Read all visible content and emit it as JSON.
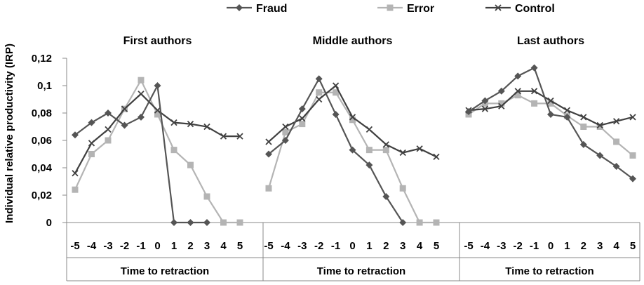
{
  "chart_data": {
    "type": "line",
    "ylabel": "Individual relative productivity (IRP)",
    "ylim": [
      0,
      0.12
    ],
    "yticks": [
      "0",
      "0,02",
      "0,04",
      "0,06",
      "0,08",
      "0,1",
      "0,12"
    ],
    "categories": [
      "-5",
      "-4",
      "-3",
      "-2",
      "-1",
      "0",
      "1",
      "2",
      "3",
      "4",
      "5"
    ],
    "legend_position": "top-center",
    "series_styles": [
      {
        "name": "Fraud",
        "color": "#555555",
        "marker": "diamond"
      },
      {
        "name": "Error",
        "color": "#b4b4b4",
        "marker": "square"
      },
      {
        "name": "Control",
        "color": "#404040",
        "marker": "x"
      }
    ],
    "panels": [
      {
        "title": "First authors",
        "xlabel": "Time to retraction",
        "series": [
          {
            "name": "Fraud",
            "values": [
              0.064,
              0.073,
              0.08,
              0.071,
              0.077,
              0.1,
              0,
              0,
              0,
              null,
              null
            ]
          },
          {
            "name": "Error",
            "values": [
              0.024,
              0.05,
              0.06,
              0.083,
              0.104,
              0.079,
              0.053,
              0.042,
              0.019,
              0,
              0
            ]
          },
          {
            "name": "Control",
            "values": [
              0.036,
              0.058,
              0.068,
              0.083,
              0.094,
              0.082,
              0.073,
              0.072,
              0.07,
              0.063,
              0.063
            ]
          }
        ]
      },
      {
        "title": "Middle authors",
        "xlabel": "Time to retraction",
        "series": [
          {
            "name": "Fraud",
            "values": [
              0.05,
              0.06,
              0.083,
              0.105,
              0.079,
              0.053,
              0.042,
              0.019,
              0,
              null,
              null
            ]
          },
          {
            "name": "Error",
            "values": [
              0.025,
              0.066,
              0.072,
              0.095,
              0.095,
              0.075,
              0.053,
              0.053,
              0.025,
              0,
              0
            ]
          },
          {
            "name": "Control",
            "values": [
              0.059,
              0.07,
              0.076,
              0.09,
              0.1,
              0.077,
              0.068,
              0.057,
              0.051,
              0.054,
              0.048
            ]
          }
        ]
      },
      {
        "title": "Last authors",
        "xlabel": "Time to retraction",
        "series": [
          {
            "name": "Fraud",
            "values": [
              0.081,
              0.089,
              0.096,
              0.107,
              0.113,
              0.079,
              0.077,
              0.057,
              0.049,
              0.041,
              0.032
            ]
          },
          {
            "name": "Error",
            "values": [
              0.079,
              0.087,
              0.087,
              0.093,
              0.087,
              0.087,
              0.078,
              0.07,
              0.07,
              0.059,
              0.049
            ]
          },
          {
            "name": "Control",
            "values": [
              0.082,
              0.083,
              0.085,
              0.096,
              0.096,
              0.089,
              0.082,
              0.077,
              0.071,
              0.074,
              0.077
            ]
          }
        ]
      }
    ]
  }
}
